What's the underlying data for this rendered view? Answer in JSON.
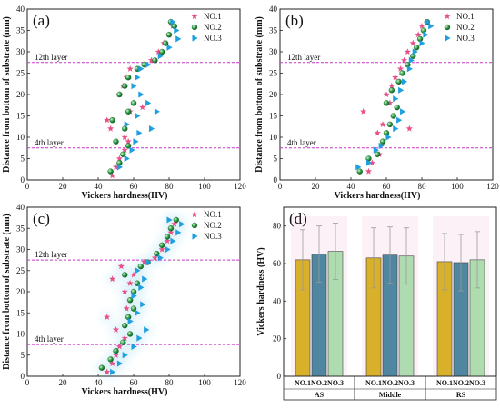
{
  "colors": {
    "no1": "#e8508a",
    "no2": "#2f9e44",
    "no3": "#1f9fe0",
    "layer_line": "#cc33cc",
    "bar_no1": "#d8b02a",
    "bar_no2": "#4f86a0",
    "bar_no3": "#aedcb0"
  },
  "legend": [
    "NO.1",
    "NO.2",
    "NO.3"
  ],
  "markers": {
    "no1": "star",
    "no2": "sphere",
    "no3": "triangle-right"
  },
  "layer_labels": {
    "top": "12th layer",
    "bottom": "4th layer"
  },
  "chart_data": [
    {
      "panel": "(a)",
      "type": "scatter",
      "xlabel": "Vickers hardness(HV)",
      "ylabel": "Distance from bottom of substrate (mm)",
      "xlim": [
        0,
        120
      ],
      "ylim": [
        0,
        40
      ],
      "xticks": [
        0,
        20,
        40,
        60,
        80,
        100,
        120
      ],
      "yticks": [
        0,
        5,
        10,
        15,
        20,
        25,
        30,
        35,
        40
      ],
      "layer_lines": [
        27.5,
        7.5
      ],
      "series": [
        {
          "name": "NO.1",
          "points": [
            [
              48,
              1
            ],
            [
              50,
              3
            ],
            [
              52,
              5
            ],
            [
              55,
              7
            ],
            [
              57,
              9
            ],
            [
              55,
              10
            ],
            [
              45,
              14
            ],
            [
              47,
              12
            ],
            [
              58,
              16
            ],
            [
              60,
              18
            ],
            [
              52,
              20
            ],
            [
              54,
              22
            ],
            [
              56,
              24
            ],
            [
              58,
              26
            ],
            [
              65,
              17
            ],
            [
              70,
              28
            ],
            [
              74,
              30
            ],
            [
              77,
              32
            ],
            [
              80,
              34
            ],
            [
              82,
              36
            ]
          ]
        },
        {
          "name": "NO.2",
          "points": [
            [
              47,
              2
            ],
            [
              52,
              4
            ],
            [
              54,
              6
            ],
            [
              57,
              8
            ],
            [
              50,
              9
            ],
            [
              48,
              14
            ],
            [
              55,
              12
            ],
            [
              57,
              16
            ],
            [
              60,
              18
            ],
            [
              52,
              20
            ],
            [
              55,
              22
            ],
            [
              57,
              24
            ],
            [
              62,
              26
            ],
            [
              66,
              27
            ],
            [
              72,
              28
            ],
            [
              76,
              30
            ],
            [
              78,
              32
            ],
            [
              80,
              34
            ],
            [
              83,
              36
            ],
            [
              81,
              37
            ]
          ]
        },
        {
          "name": "NO.3",
          "points": [
            [
              52,
              3
            ],
            [
              56,
              5
            ],
            [
              59,
              7
            ],
            [
              61,
              9
            ],
            [
              63,
              11
            ],
            [
              56,
              13
            ],
            [
              62,
              15
            ],
            [
              68,
              18
            ],
            [
              64,
              20
            ],
            [
              60,
              22
            ],
            [
              62,
              24
            ],
            [
              64,
              26
            ],
            [
              68,
              27
            ],
            [
              75,
              29
            ],
            [
              80,
              31
            ],
            [
              85,
              33
            ],
            [
              84,
              35
            ],
            [
              82,
              37
            ],
            [
              73,
              16
            ],
            [
              70,
              12
            ]
          ]
        }
      ]
    },
    {
      "panel": "(b)",
      "type": "scatter",
      "xlabel": "Vickers hardness(HV)",
      "ylabel": "Distance from bottom of substrate (mm)",
      "xlim": [
        0,
        120
      ],
      "ylim": [
        0,
        40
      ],
      "xticks": [
        0,
        20,
        40,
        60,
        80,
        100,
        120
      ],
      "yticks": [
        0,
        5,
        10,
        15,
        20,
        25,
        30,
        35,
        40
      ],
      "layer_lines": [
        27.5,
        7.5
      ],
      "series": [
        {
          "name": "NO.1",
          "points": [
            [
              50,
              2
            ],
            [
              52,
              4
            ],
            [
              56,
              6
            ],
            [
              58,
              9
            ],
            [
              55,
              11
            ],
            [
              47,
              16
            ],
            [
              58,
              13
            ],
            [
              62,
              18
            ],
            [
              60,
              20
            ],
            [
              63,
              22
            ],
            [
              65,
              24
            ],
            [
              68,
              26
            ],
            [
              70,
              28
            ],
            [
              72,
              30
            ],
            [
              75,
              32
            ],
            [
              78,
              34
            ],
            [
              80,
              36
            ],
            [
              73,
              12
            ]
          ]
        },
        {
          "name": "NO.2",
          "points": [
            [
              45,
              2
            ],
            [
              50,
              5
            ],
            [
              55,
              6
            ],
            [
              58,
              9
            ],
            [
              60,
              11
            ],
            [
              62,
              13
            ],
            [
              64,
              15
            ],
            [
              66,
              17
            ],
            [
              60,
              18
            ],
            [
              63,
              21
            ],
            [
              67,
              23
            ],
            [
              69,
              25
            ],
            [
              72,
              27
            ],
            [
              75,
              29
            ],
            [
              77,
              31
            ],
            [
              79,
              33
            ],
            [
              81,
              35
            ],
            [
              83,
              37
            ]
          ]
        },
        {
          "name": "NO.3",
          "points": [
            [
              44,
              3
            ],
            [
              50,
              4
            ],
            [
              54,
              7
            ],
            [
              57,
              8
            ],
            [
              61,
              10
            ],
            [
              65,
              12
            ],
            [
              67,
              14
            ],
            [
              69,
              16
            ],
            [
              65,
              19
            ],
            [
              68,
              21
            ],
            [
              70,
              23
            ],
            [
              73,
              26
            ],
            [
              74,
              28
            ],
            [
              76,
              30
            ],
            [
              80,
              32
            ],
            [
              82,
              34
            ],
            [
              85,
              36
            ],
            [
              83,
              37
            ]
          ]
        }
      ]
    },
    {
      "panel": "(c)",
      "type": "scatter",
      "xlabel": "Vickers hardness(HV)",
      "ylabel": "Distance from bottom of substrate (mm)",
      "xlim": [
        0,
        120
      ],
      "ylim": [
        0,
        40
      ],
      "xticks": [
        0,
        20,
        40,
        60,
        80,
        100,
        120
      ],
      "yticks": [
        0,
        5,
        10,
        15,
        20,
        25,
        30,
        35,
        40
      ],
      "layer_lines": [
        27.5,
        7.5
      ],
      "series": [
        {
          "name": "NO.1",
          "points": [
            [
              45,
              1
            ],
            [
              48,
              3
            ],
            [
              50,
              5
            ],
            [
              52,
              7
            ],
            [
              55,
              9
            ],
            [
              45,
              14
            ],
            [
              50,
              11
            ],
            [
              56,
              16
            ],
            [
              58,
              18
            ],
            [
              55,
              20
            ],
            [
              58,
              22
            ],
            [
              48,
              23
            ],
            [
              60,
              24
            ],
            [
              53,
              26
            ],
            [
              66,
              27
            ],
            [
              72,
              28
            ],
            [
              76,
              30
            ],
            [
              79,
              32
            ],
            [
              81,
              34
            ],
            [
              83,
              36
            ]
          ]
        },
        {
          "name": "NO.2",
          "points": [
            [
              42,
              2
            ],
            [
              47,
              4
            ],
            [
              50,
              6
            ],
            [
              54,
              8
            ],
            [
              58,
              10
            ],
            [
              55,
              12
            ],
            [
              57,
              14
            ],
            [
              60,
              16
            ],
            [
              58,
              18
            ],
            [
              60,
              20
            ],
            [
              62,
              22
            ],
            [
              55,
              24
            ],
            [
              64,
              26
            ],
            [
              68,
              27
            ],
            [
              73,
              29
            ],
            [
              76,
              31
            ],
            [
              79,
              33
            ],
            [
              81,
              35
            ],
            [
              84,
              37
            ]
          ]
        },
        {
          "name": "NO.3",
          "points": [
            [
              48,
              1
            ],
            [
              52,
              3
            ],
            [
              55,
              5
            ],
            [
              60,
              7
            ],
            [
              63,
              9
            ],
            [
              67,
              11
            ],
            [
              58,
              13
            ],
            [
              62,
              15
            ],
            [
              65,
              17
            ],
            [
              60,
              19
            ],
            [
              64,
              21
            ],
            [
              66,
              23
            ],
            [
              62,
              25
            ],
            [
              68,
              27
            ],
            [
              75,
              28
            ],
            [
              79,
              30
            ],
            [
              82,
              32
            ],
            [
              85,
              34
            ],
            [
              87,
              36
            ],
            [
              80,
              37
            ]
          ]
        }
      ]
    },
    {
      "panel": "(d)",
      "type": "bar",
      "ylabel": "Vickers hardness (HV)",
      "ylim": [
        0,
        90
      ],
      "yticks": [
        0,
        20,
        40,
        60,
        80
      ],
      "groups": [
        "AS",
        "Middle",
        "RS"
      ],
      "categories": [
        "NO.1",
        "NO.2",
        "NO.3"
      ],
      "series": [
        {
          "name": "NO.1",
          "values": [
            62,
            63,
            61
          ],
          "errors": [
            16,
            16,
            15
          ]
        },
        {
          "name": "NO.2",
          "values": [
            65,
            64.5,
            60.5
          ],
          "errors": [
            15,
            15,
            15
          ]
        },
        {
          "name": "NO.3",
          "values": [
            66.5,
            64,
            62
          ],
          "errors": [
            15,
            15,
            15
          ]
        }
      ]
    }
  ]
}
